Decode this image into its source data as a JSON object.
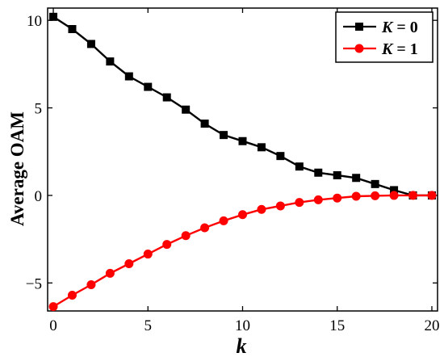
{
  "chart_data": {
    "type": "line",
    "xlabel": "k",
    "ylabel": "Average OAM",
    "xlim": [
      -0.3,
      20.3
    ],
    "ylim": [
      -6.6,
      10.7
    ],
    "x_ticks": [
      0,
      5,
      10,
      15,
      20
    ],
    "y_ticks": [
      10,
      5,
      0,
      -5
    ],
    "y_tick_labels": [
      "10",
      "5",
      "0",
      "−5"
    ],
    "grid": false,
    "legend_position": "top-right",
    "series": [
      {
        "name": "K = 0",
        "name_italic": "K",
        "name_rest": " = 0",
        "color": "#000000",
        "marker": "square",
        "x": [
          0,
          1,
          2,
          3,
          4,
          5,
          6,
          7,
          8,
          9,
          10,
          11,
          12,
          13,
          14,
          15,
          16,
          17,
          18,
          19,
          20
        ],
        "values": [
          10.2,
          9.5,
          8.65,
          7.65,
          6.8,
          6.2,
          5.6,
          4.9,
          4.1,
          3.45,
          3.1,
          2.75,
          2.25,
          1.65,
          1.3,
          1.15,
          1.0,
          0.65,
          0.3,
          0.0,
          0.0
        ]
      },
      {
        "name": "K = 1",
        "name_italic": "K",
        "name_rest": " = 1",
        "color": "#ff0000",
        "marker": "circle",
        "x": [
          0,
          1,
          2,
          3,
          4,
          5,
          6,
          7,
          8,
          9,
          10,
          11,
          12,
          13,
          14,
          15,
          16,
          17,
          18,
          19,
          20
        ],
        "values": [
          -6.35,
          -5.7,
          -5.1,
          -4.45,
          -3.9,
          -3.35,
          -2.8,
          -2.3,
          -1.85,
          -1.45,
          -1.1,
          -0.8,
          -0.6,
          -0.4,
          -0.25,
          -0.15,
          -0.05,
          -0.02,
          0.0,
          0.0,
          0.0
        ]
      }
    ]
  }
}
